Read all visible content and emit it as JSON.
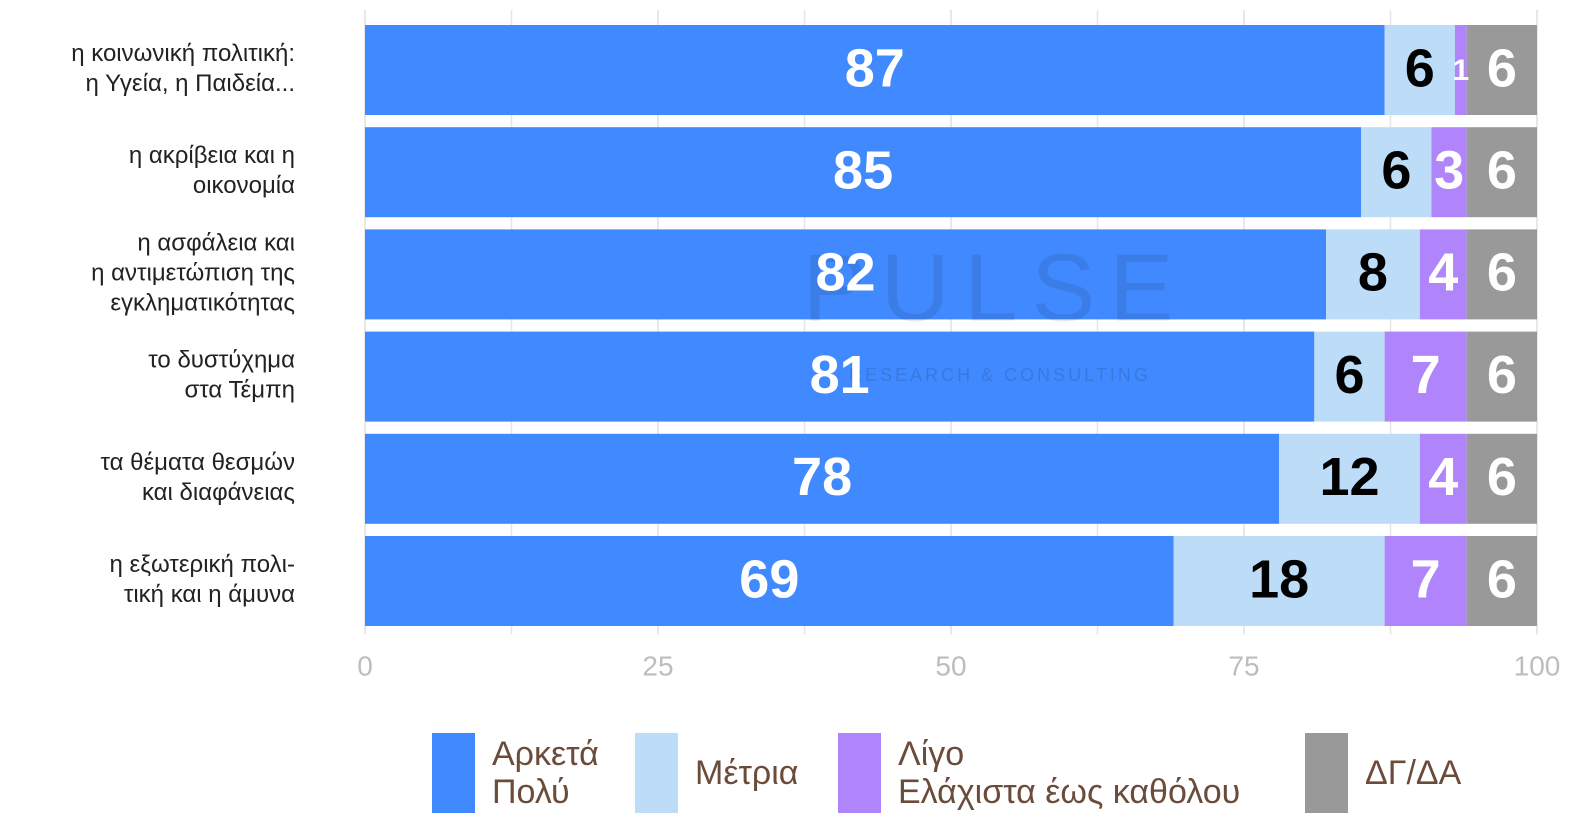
{
  "chart_data": {
    "type": "stacked_bar_horizontal",
    "categories": [
      "η κοινωνική πολιτική:\nη Υγεία, η Παιδεία...",
      "η ακρίβεια και η\nοικονομία",
      "η ασφάλεια και\nη αντιμετώπιση της\nεγκληματικότητας",
      "το δυστύχημα\nστα Τέμπη",
      "τα θέματα θεσμών\nκαι διαφάνειας",
      "η εξωτερική πολι-\nτική και η άμυνα"
    ],
    "series": [
      {
        "name": "Αρκετά\nΠολύ",
        "color": "#4189fe",
        "label_color": "#ffffff",
        "values": [
          87,
          85,
          82,
          81,
          78,
          69
        ]
      },
      {
        "name": "Μέτρια",
        "color": "#bcdcf8",
        "label_color": "#000000",
        "values": [
          6,
          6,
          8,
          6,
          12,
          18
        ]
      },
      {
        "name": "Λίγο\nΕλάχιστα έως καθόλου",
        "color": "#b085fb",
        "label_color": "#ffffff",
        "values": [
          1,
          3,
          4,
          7,
          4,
          7
        ]
      },
      {
        "name": "ΔΓ/ΔΑ",
        "color": "#999999",
        "label_color": "#ffffff",
        "values": [
          6,
          6,
          6,
          6,
          6,
          6
        ]
      }
    ],
    "xlim": [
      0,
      100
    ],
    "xticks": [
      0,
      25,
      50,
      75,
      100
    ],
    "minor_xticks": [
      12.5,
      37.5,
      62.5,
      87.5
    ],
    "grid": true,
    "watermark": "PULSE",
    "watermark_sub": "RESEARCH & CONSULTING"
  }
}
